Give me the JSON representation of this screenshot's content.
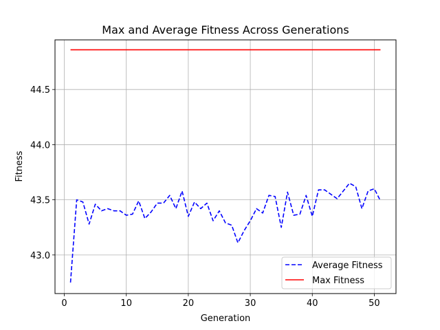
{
  "chart_data": {
    "type": "line",
    "title": "Max and Average Fitness Across Generations",
    "xlabel": "Generation",
    "ylabel": "Fitness",
    "xlim": [
      -1.5,
      53.5
    ],
    "ylim": [
      42.65,
      44.95
    ],
    "x_ticks": [
      0,
      10,
      20,
      30,
      40,
      50
    ],
    "y_ticks": [
      43.0,
      43.5,
      44.0,
      44.5
    ],
    "y_tick_labels": [
      "43.0",
      "43.5",
      "44.0",
      "44.5"
    ],
    "grid": true,
    "legend_position": "lower-right",
    "x": [
      1,
      2,
      3,
      4,
      5,
      6,
      7,
      8,
      9,
      10,
      11,
      12,
      13,
      14,
      15,
      16,
      17,
      18,
      19,
      20,
      21,
      22,
      23,
      24,
      25,
      26,
      27,
      28,
      29,
      30,
      31,
      32,
      33,
      34,
      35,
      36,
      37,
      38,
      39,
      40,
      41,
      42,
      43,
      44,
      45,
      46,
      47,
      48,
      49,
      50,
      51
    ],
    "series": [
      {
        "name": "Average Fitness",
        "color": "#0000ff",
        "style": "dashed",
        "values": [
          42.75,
          43.5,
          43.48,
          43.28,
          43.46,
          43.4,
          43.42,
          43.4,
          43.4,
          43.36,
          43.37,
          43.49,
          43.33,
          43.39,
          43.47,
          43.47,
          43.54,
          43.42,
          43.58,
          43.35,
          43.48,
          43.42,
          43.47,
          43.31,
          43.4,
          43.29,
          43.27,
          43.11,
          43.22,
          43.31,
          43.42,
          43.38,
          43.54,
          43.53,
          43.25,
          43.57,
          43.36,
          43.37,
          43.54,
          43.35,
          43.59,
          43.59,
          43.55,
          43.51,
          43.58,
          43.65,
          43.62,
          43.42,
          43.58,
          43.6,
          43.49
        ]
      },
      {
        "name": "Max Fitness",
        "color": "#ff0000",
        "style": "solid",
        "values": [
          44.86,
          44.86,
          44.86,
          44.86,
          44.86,
          44.86,
          44.86,
          44.86,
          44.86,
          44.86,
          44.86,
          44.86,
          44.86,
          44.86,
          44.86,
          44.86,
          44.86,
          44.86,
          44.86,
          44.86,
          44.86,
          44.86,
          44.86,
          44.86,
          44.86,
          44.86,
          44.86,
          44.86,
          44.86,
          44.86,
          44.86,
          44.86,
          44.86,
          44.86,
          44.86,
          44.86,
          44.86,
          44.86,
          44.86,
          44.86,
          44.86,
          44.86,
          44.86,
          44.86,
          44.86,
          44.86,
          44.86,
          44.86,
          44.86,
          44.86,
          44.86
        ]
      }
    ]
  }
}
